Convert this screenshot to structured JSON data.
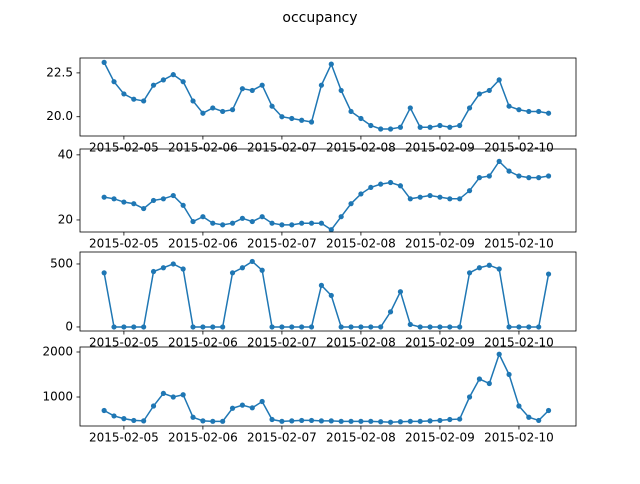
{
  "title": "occupancy",
  "chart_data": [
    {
      "type": "line",
      "color": "#1f77b4",
      "x": [
        "2015-02-04T18:00",
        "2015-02-04T21:00",
        "2015-02-05T00:00",
        "2015-02-05T03:00",
        "2015-02-05T06:00",
        "2015-02-05T09:00",
        "2015-02-05T12:00",
        "2015-02-05T15:00",
        "2015-02-05T18:00",
        "2015-02-05T21:00",
        "2015-02-06T00:00",
        "2015-02-06T03:00",
        "2015-02-06T06:00",
        "2015-02-06T09:00",
        "2015-02-06T12:00",
        "2015-02-06T15:00",
        "2015-02-06T18:00",
        "2015-02-06T21:00",
        "2015-02-07T00:00",
        "2015-02-07T03:00",
        "2015-02-07T06:00",
        "2015-02-07T09:00",
        "2015-02-07T12:00",
        "2015-02-07T15:00",
        "2015-02-07T18:00",
        "2015-02-07T21:00",
        "2015-02-08T00:00",
        "2015-02-08T03:00",
        "2015-02-08T06:00",
        "2015-02-08T09:00",
        "2015-02-08T12:00",
        "2015-02-08T15:00",
        "2015-02-08T18:00",
        "2015-02-08T21:00",
        "2015-02-09T00:00",
        "2015-02-09T03:00",
        "2015-02-09T06:00",
        "2015-02-09T09:00",
        "2015-02-09T12:00",
        "2015-02-09T15:00",
        "2015-02-09T18:00",
        "2015-02-09T21:00",
        "2015-02-10T00:00",
        "2015-02-10T03:00",
        "2015-02-10T06:00",
        "2015-02-10T09:00"
      ],
      "values": [
        23.1,
        22.0,
        21.3,
        21.0,
        20.9,
        21.8,
        22.1,
        22.4,
        22.0,
        20.9,
        20.2,
        20.5,
        20.3,
        20.4,
        21.6,
        21.5,
        21.8,
        20.6,
        20.0,
        19.9,
        19.8,
        19.7,
        21.8,
        23.0,
        21.5,
        20.3,
        19.9,
        19.5,
        19.3,
        19.3,
        19.4,
        20.5,
        19.4,
        19.4,
        19.5,
        19.4,
        19.5,
        20.5,
        21.3,
        21.5,
        22.1,
        20.6,
        20.4,
        20.3,
        20.3,
        20.2
      ],
      "xlim": [
        "2015-02-04T10:40",
        "2015-02-10T17:20"
      ],
      "xticks": [
        "2015-02-05",
        "2015-02-06",
        "2015-02-07",
        "2015-02-08",
        "2015-02-09",
        "2015-02-10"
      ],
      "ylim": [
        18.9,
        23.35
      ],
      "yticks": [
        {
          "value": 20,
          "label": "20.0"
        },
        22.5
      ]
    },
    {
      "type": "line",
      "color": "#1f77b4",
      "x": [
        "2015-02-04T18:00",
        "2015-02-04T21:00",
        "2015-02-05T00:00",
        "2015-02-05T03:00",
        "2015-02-05T06:00",
        "2015-02-05T09:00",
        "2015-02-05T12:00",
        "2015-02-05T15:00",
        "2015-02-05T18:00",
        "2015-02-05T21:00",
        "2015-02-06T00:00",
        "2015-02-06T03:00",
        "2015-02-06T06:00",
        "2015-02-06T09:00",
        "2015-02-06T12:00",
        "2015-02-06T15:00",
        "2015-02-06T18:00",
        "2015-02-06T21:00",
        "2015-02-07T00:00",
        "2015-02-07T03:00",
        "2015-02-07T06:00",
        "2015-02-07T09:00",
        "2015-02-07T12:00",
        "2015-02-07T15:00",
        "2015-02-07T18:00",
        "2015-02-07T21:00",
        "2015-02-08T00:00",
        "2015-02-08T03:00",
        "2015-02-08T06:00",
        "2015-02-08T09:00",
        "2015-02-08T12:00",
        "2015-02-08T15:00",
        "2015-02-08T18:00",
        "2015-02-08T21:00",
        "2015-02-09T00:00",
        "2015-02-09T03:00",
        "2015-02-09T06:00",
        "2015-02-09T09:00",
        "2015-02-09T12:00",
        "2015-02-09T15:00",
        "2015-02-09T18:00",
        "2015-02-09T21:00",
        "2015-02-10T00:00",
        "2015-02-10T03:00",
        "2015-02-10T06:00",
        "2015-02-10T09:00"
      ],
      "values": [
        27,
        26.5,
        25.5,
        25,
        23.5,
        26,
        26.5,
        27.5,
        24.5,
        19.5,
        21,
        19,
        18.5,
        19,
        20.5,
        19.5,
        21,
        19,
        18.5,
        18.5,
        19,
        19,
        19,
        17,
        21,
        25,
        28,
        30,
        31,
        31.5,
        30.5,
        26.5,
        27,
        27.5,
        27,
        26.5,
        26.5,
        29,
        33,
        33.5,
        38,
        35,
        33.5,
        33,
        33,
        33.5
      ],
      "xlim": [
        "2015-02-04T10:40",
        "2015-02-10T17:20"
      ],
      "xticks": [
        "2015-02-05",
        "2015-02-06",
        "2015-02-07",
        "2015-02-08",
        "2015-02-09",
        "2015-02-10"
      ],
      "ylim": [
        16.3,
        41.8
      ],
      "yticks": [
        20,
        40
      ]
    },
    {
      "type": "line",
      "color": "#1f77b4",
      "x": [
        "2015-02-04T18:00",
        "2015-02-04T21:00",
        "2015-02-05T00:00",
        "2015-02-05T03:00",
        "2015-02-05T06:00",
        "2015-02-05T09:00",
        "2015-02-05T12:00",
        "2015-02-05T15:00",
        "2015-02-05T18:00",
        "2015-02-05T21:00",
        "2015-02-06T00:00",
        "2015-02-06T03:00",
        "2015-02-06T06:00",
        "2015-02-06T09:00",
        "2015-02-06T12:00",
        "2015-02-06T15:00",
        "2015-02-06T18:00",
        "2015-02-06T21:00",
        "2015-02-07T00:00",
        "2015-02-07T03:00",
        "2015-02-07T06:00",
        "2015-02-07T09:00",
        "2015-02-07T12:00",
        "2015-02-07T15:00",
        "2015-02-07T18:00",
        "2015-02-07T21:00",
        "2015-02-08T00:00",
        "2015-02-08T03:00",
        "2015-02-08T06:00",
        "2015-02-08T09:00",
        "2015-02-08T12:00",
        "2015-02-08T15:00",
        "2015-02-08T18:00",
        "2015-02-08T21:00",
        "2015-02-09T00:00",
        "2015-02-09T03:00",
        "2015-02-09T06:00",
        "2015-02-09T09:00",
        "2015-02-09T12:00",
        "2015-02-09T15:00",
        "2015-02-09T18:00",
        "2015-02-09T21:00",
        "2015-02-10T00:00",
        "2015-02-10T03:00",
        "2015-02-10T06:00",
        "2015-02-10T09:00"
      ],
      "values": [
        430,
        0,
        0,
        0,
        0,
        440,
        470,
        500,
        460,
        0,
        0,
        0,
        0,
        430,
        470,
        520,
        450,
        0,
        0,
        0,
        0,
        0,
        330,
        250,
        0,
        0,
        0,
        0,
        0,
        120,
        280,
        20,
        0,
        0,
        0,
        0,
        0,
        430,
        470,
        490,
        460,
        0,
        0,
        0,
        0,
        420
      ],
      "xlim": [
        "2015-02-04T10:40",
        "2015-02-10T17:20"
      ],
      "xticks": [
        "2015-02-05",
        "2015-02-06",
        "2015-02-07",
        "2015-02-08",
        "2015-02-09",
        "2015-02-10"
      ],
      "ylim": [
        -32,
        595
      ],
      "yticks": [
        0,
        500
      ]
    },
    {
      "type": "line",
      "color": "#1f77b4",
      "x": [
        "2015-02-04T18:00",
        "2015-02-04T21:00",
        "2015-02-05T00:00",
        "2015-02-05T03:00",
        "2015-02-05T06:00",
        "2015-02-05T09:00",
        "2015-02-05T12:00",
        "2015-02-05T15:00",
        "2015-02-05T18:00",
        "2015-02-05T21:00",
        "2015-02-06T00:00",
        "2015-02-06T03:00",
        "2015-02-06T06:00",
        "2015-02-06T09:00",
        "2015-02-06T12:00",
        "2015-02-06T15:00",
        "2015-02-06T18:00",
        "2015-02-06T21:00",
        "2015-02-07T00:00",
        "2015-02-07T03:00",
        "2015-02-07T06:00",
        "2015-02-07T09:00",
        "2015-02-07T12:00",
        "2015-02-07T15:00",
        "2015-02-07T18:00",
        "2015-02-07T21:00",
        "2015-02-08T00:00",
        "2015-02-08T03:00",
        "2015-02-08T06:00",
        "2015-02-08T09:00",
        "2015-02-08T12:00",
        "2015-02-08T15:00",
        "2015-02-08T18:00",
        "2015-02-08T21:00",
        "2015-02-09T00:00",
        "2015-02-09T03:00",
        "2015-02-09T06:00",
        "2015-02-09T09:00",
        "2015-02-09T12:00",
        "2015-02-09T15:00",
        "2015-02-09T18:00",
        "2015-02-09T21:00",
        "2015-02-10T00:00",
        "2015-02-10T03:00",
        "2015-02-10T06:00",
        "2015-02-10T09:00"
      ],
      "values": [
        700,
        580,
        520,
        480,
        470,
        800,
        1080,
        1000,
        1050,
        550,
        470,
        460,
        460,
        750,
        820,
        760,
        900,
        500,
        460,
        470,
        480,
        480,
        470,
        470,
        460,
        460,
        460,
        460,
        450,
        440,
        450,
        460,
        460,
        470,
        480,
        500,
        510,
        1000,
        1400,
        1300,
        1950,
        1500,
        800,
        550,
        480,
        700
      ],
      "xlim": [
        "2015-02-04T10:40",
        "2015-02-10T17:20"
      ],
      "xticks": [
        "2015-02-05",
        "2015-02-06",
        "2015-02-07",
        "2015-02-08",
        "2015-02-09",
        "2015-02-10"
      ],
      "ylim": [
        356,
        2111
      ],
      "yticks": [
        1000,
        2000
      ]
    }
  ]
}
